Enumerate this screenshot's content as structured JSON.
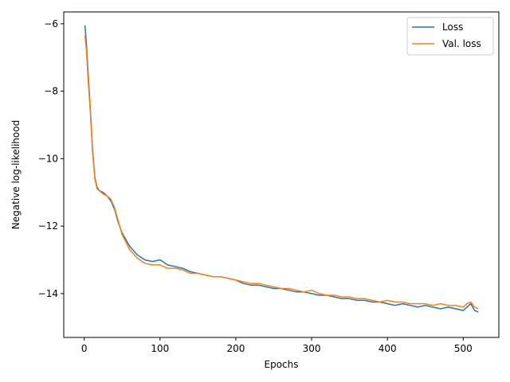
{
  "chart_data": {
    "type": "line",
    "title": "",
    "xlabel": "Epochs",
    "ylabel": "Negative log-likelihood",
    "xlim": [
      -27,
      547
    ],
    "ylim": [
      -15.3,
      -5.65
    ],
    "xticks": [
      0,
      100,
      200,
      300,
      400,
      500
    ],
    "yticks": [
      -6,
      -8,
      -10,
      -12,
      -14
    ],
    "ytick_labels": [
      "−6",
      "−8",
      "−10",
      "−12",
      "−14"
    ],
    "grid": false,
    "legend_position": "top-right",
    "series": [
      {
        "name": "Loss",
        "color": "#1f77b4",
        "x": [
          1,
          3,
          5,
          8,
          11,
          14,
          17,
          20,
          25,
          30,
          35,
          40,
          45,
          50,
          60,
          70,
          80,
          90,
          100,
          110,
          120,
          130,
          140,
          150,
          160,
          170,
          180,
          190,
          200,
          210,
          220,
          230,
          240,
          250,
          260,
          270,
          280,
          290,
          300,
          310,
          320,
          330,
          340,
          350,
          360,
          370,
          380,
          390,
          400,
          410,
          420,
          430,
          440,
          450,
          460,
          470,
          480,
          490,
          500,
          505,
          510,
          515,
          520
        ],
        "y": [
          -6.05,
          -6.6,
          -7.4,
          -8.5,
          -9.7,
          -10.55,
          -10.85,
          -10.95,
          -11.0,
          -11.1,
          -11.25,
          -11.5,
          -11.9,
          -12.2,
          -12.6,
          -12.85,
          -13.0,
          -13.05,
          -13.0,
          -13.15,
          -13.2,
          -13.25,
          -13.35,
          -13.4,
          -13.45,
          -13.5,
          -13.5,
          -13.55,
          -13.6,
          -13.7,
          -13.75,
          -13.75,
          -13.8,
          -13.85,
          -13.85,
          -13.9,
          -13.95,
          -13.95,
          -14.0,
          -14.05,
          -14.05,
          -14.1,
          -14.15,
          -14.15,
          -14.2,
          -14.2,
          -14.25,
          -14.25,
          -14.3,
          -14.35,
          -14.3,
          -14.35,
          -14.4,
          -14.35,
          -14.4,
          -14.45,
          -14.4,
          -14.45,
          -14.5,
          -14.4,
          -14.3,
          -14.5,
          -14.55
        ]
      },
      {
        "name": "Val. loss",
        "color": "#ff7f0e",
        "x": [
          1,
          3,
          5,
          8,
          11,
          14,
          17,
          20,
          25,
          30,
          35,
          40,
          45,
          50,
          60,
          70,
          80,
          90,
          100,
          110,
          120,
          130,
          140,
          150,
          160,
          170,
          180,
          190,
          200,
          210,
          220,
          230,
          240,
          250,
          260,
          270,
          280,
          290,
          300,
          310,
          320,
          330,
          340,
          350,
          360,
          370,
          380,
          390,
          400,
          410,
          420,
          430,
          440,
          450,
          460,
          470,
          480,
          490,
          500,
          505,
          510,
          515,
          520
        ],
        "y": [
          -6.35,
          -6.8,
          -7.6,
          -8.6,
          -9.8,
          -10.6,
          -10.9,
          -10.95,
          -11.05,
          -11.1,
          -11.2,
          -11.45,
          -11.85,
          -12.25,
          -12.7,
          -12.95,
          -13.1,
          -13.15,
          -13.15,
          -13.25,
          -13.25,
          -13.3,
          -13.4,
          -13.4,
          -13.45,
          -13.5,
          -13.5,
          -13.55,
          -13.6,
          -13.65,
          -13.7,
          -13.7,
          -13.75,
          -13.8,
          -13.85,
          -13.85,
          -13.9,
          -13.95,
          -13.9,
          -14.0,
          -14.05,
          -14.05,
          -14.1,
          -14.1,
          -14.15,
          -14.15,
          -14.2,
          -14.25,
          -14.2,
          -14.25,
          -14.25,
          -14.3,
          -14.3,
          -14.3,
          -14.35,
          -14.3,
          -14.35,
          -14.35,
          -14.4,
          -14.3,
          -14.25,
          -14.4,
          -14.45
        ]
      }
    ]
  }
}
